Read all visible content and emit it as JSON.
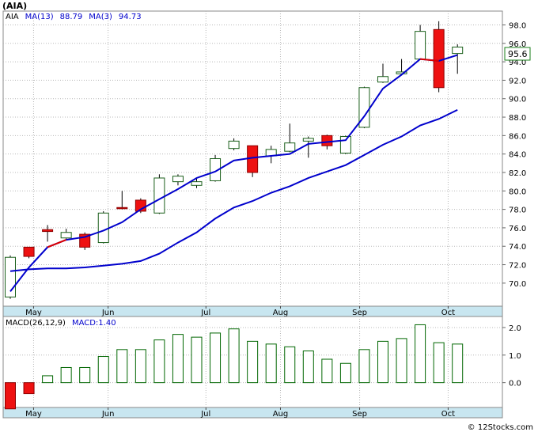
{
  "ticker_title": "(AIA)",
  "credit": "© 12Stocks.com",
  "chart_data": [
    {
      "type": "candlestick",
      "ticker": "AIA",
      "legend": [
        {
          "text": "AIA",
          "color": "#000000"
        },
        {
          "text": "MA(13)",
          "color": "#0000cc"
        },
        {
          "text": "88.79",
          "color": "#0000cc"
        },
        {
          "text": "MA(3)",
          "color": "#0000cc"
        },
        {
          "text": "94.73",
          "color": "#0000cc"
        }
      ],
      "last_price_label": "95.6",
      "ylim": [
        67.5,
        99.5
      ],
      "y_ticks": [
        70.0,
        72.0,
        74.0,
        76.0,
        78.0,
        80.0,
        82.0,
        84.0,
        86.0,
        88.0,
        90.0,
        92.0,
        94.0,
        96.0,
        98.0
      ],
      "y_tick_labels": [
        "70.0",
        "72.0",
        "74.0",
        "76.0",
        "78.0",
        "80.0",
        "82.0",
        "84.0",
        "86.0",
        "88.0",
        "90.0",
        "92.0",
        "94.0",
        "96.0",
        "98.0"
      ],
      "x_tick_labels": [
        "May",
        "Jun",
        "Jul",
        "Aug",
        "Sep",
        "Oct"
      ],
      "x_tick_index": [
        1.25,
        5.25,
        10.5,
        14.5,
        18.75,
        23.5
      ],
      "grid": true,
      "up_color": "#ffffff",
      "down_color": "#ee1111",
      "candles": [
        {
          "open": 68.5,
          "high": 73.0,
          "low": 68.3,
          "close": 72.8
        },
        {
          "open": 73.9,
          "high": 73.9,
          "low": 72.7,
          "close": 72.9
        },
        {
          "open": 75.8,
          "high": 76.3,
          "low": 74.5,
          "close": 75.6
        },
        {
          "open": 74.9,
          "high": 75.9,
          "low": 74.8,
          "close": 75.5
        },
        {
          "open": 75.3,
          "high": 75.5,
          "low": 73.6,
          "close": 73.9
        },
        {
          "open": 74.4,
          "high": 77.8,
          "low": 74.3,
          "close": 77.6
        },
        {
          "open": 78.2,
          "high": 80.0,
          "low": 78.0,
          "close": 78.1
        },
        {
          "open": 79.0,
          "high": 79.2,
          "low": 77.6,
          "close": 77.8
        },
        {
          "open": 77.6,
          "high": 81.8,
          "low": 77.5,
          "close": 81.4
        },
        {
          "open": 81.0,
          "high": 81.8,
          "low": 80.6,
          "close": 81.6
        },
        {
          "open": 80.6,
          "high": 81.4,
          "low": 80.3,
          "close": 81.0
        },
        {
          "open": 81.1,
          "high": 83.9,
          "low": 81.0,
          "close": 83.5
        },
        {
          "open": 84.6,
          "high": 85.7,
          "low": 84.4,
          "close": 85.4
        },
        {
          "open": 84.9,
          "high": 84.9,
          "low": 81.5,
          "close": 82.0
        },
        {
          "open": 83.8,
          "high": 84.9,
          "low": 83.0,
          "close": 84.5
        },
        {
          "open": 84.3,
          "high": 87.3,
          "low": 84.2,
          "close": 85.2
        },
        {
          "open": 85.4,
          "high": 85.9,
          "low": 83.6,
          "close": 85.7
        },
        {
          "open": 86.0,
          "high": 86.1,
          "low": 84.5,
          "close": 84.9
        },
        {
          "open": 84.1,
          "high": 86.0,
          "low": 84.0,
          "close": 85.9
        },
        {
          "open": 86.9,
          "high": 91.3,
          "low": 86.8,
          "close": 91.2
        },
        {
          "open": 91.8,
          "high": 93.8,
          "low": 91.7,
          "close": 92.4
        },
        {
          "open": 92.7,
          "high": 94.3,
          "low": 92.7,
          "close": 92.9
        },
        {
          "open": 94.3,
          "high": 98.0,
          "low": 94.2,
          "close": 97.3
        },
        {
          "open": 97.5,
          "high": 98.4,
          "low": 90.7,
          "close": 91.2
        },
        {
          "open": 94.9,
          "high": 95.9,
          "low": 92.7,
          "close": 95.6
        }
      ],
      "series": [
        {
          "name": "MA(13)",
          "color": "#0000cc",
          "values": [
            71.3,
            71.5,
            71.6,
            71.6,
            71.7,
            71.9,
            72.1,
            72.4,
            73.2,
            74.4,
            75.5,
            77.0,
            78.2,
            78.9,
            79.8,
            80.5,
            81.4,
            82.1,
            82.8,
            83.9,
            85.0,
            85.9,
            87.1,
            87.8,
            88.79
          ]
        },
        {
          "name": "MA(3)",
          "color": "#0000cc",
          "values": [
            69.1,
            71.7,
            73.9,
            74.7,
            75.0,
            75.7,
            76.6,
            78.0,
            79.1,
            80.2,
            81.4,
            82.1,
            83.3,
            83.6,
            83.8,
            84.0,
            85.1,
            85.3,
            85.5,
            88.1,
            91.1,
            92.6,
            94.3,
            94.1,
            94.73
          ],
          "down_segments": [
            [
              2,
              3
            ],
            [
              22,
              23
            ]
          ],
          "down_color": "#dd0000"
        }
      ]
    },
    {
      "type": "bar",
      "legend": [
        {
          "text": "MACD(26,12,9)",
          "color": "#000000"
        },
        {
          "text": "MACD:1.40",
          "color": "#0000cc"
        }
      ],
      "ylim": [
        -0.9,
        2.4
      ],
      "y_ticks": [
        0.0,
        1.0,
        2.0
      ],
      "y_tick_labels": [
        "0.0",
        "1.0",
        "2.0"
      ],
      "x_tick_labels": [
        "May",
        "Jun",
        "Jul",
        "Aug",
        "Sep",
        "Oct"
      ],
      "x_tick_index": [
        1.25,
        5.25,
        10.5,
        14.5,
        18.75,
        23.5
      ],
      "grid": true,
      "values": [
        -0.95,
        -0.4,
        0.25,
        0.55,
        0.55,
        0.95,
        1.2,
        1.2,
        1.55,
        1.75,
        1.65,
        1.8,
        1.95,
        1.5,
        1.4,
        1.3,
        1.15,
        0.85,
        0.7,
        1.2,
        1.5,
        1.6,
        2.1,
        1.45,
        1.4
      ],
      "pos_color": "#ffffff",
      "pos_stroke": "#006600",
      "neg_color": "#ee1111"
    }
  ]
}
